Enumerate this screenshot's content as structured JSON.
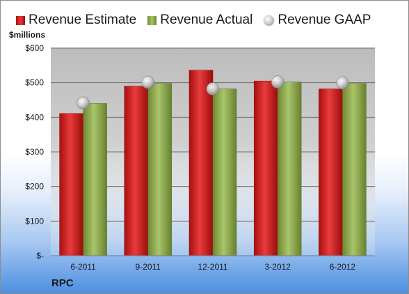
{
  "unit_label": "$millions",
  "company": "RPC",
  "legend": [
    {
      "label": "Revenue Estimate",
      "icon": "red-bar-swatch"
    },
    {
      "label": "Revenue Actual",
      "icon": "green-bar-swatch"
    },
    {
      "label": "Revenue GAAP",
      "icon": "gray-sphere-marker"
    }
  ],
  "colors": {
    "estimate": "#d42a2a",
    "actual": "#8fae4f",
    "gaap": "#b0b0b0",
    "plot_bg": "#c7c7c7"
  },
  "chart_data": {
    "type": "bar",
    "categories": [
      "6-2011",
      "9-2011",
      "12-2011",
      "3-2012",
      "6-2012"
    ],
    "series": [
      {
        "name": "Revenue Estimate",
        "type": "bar",
        "values": [
          411,
          490,
          536,
          505,
          482
        ]
      },
      {
        "name": "Revenue Actual",
        "type": "bar",
        "values": [
          440,
          498,
          482,
          502,
          498
        ]
      },
      {
        "name": "Revenue GAAP",
        "type": "scatter",
        "values": [
          441,
          501,
          482,
          502,
          499
        ]
      }
    ],
    "ylim": [
      0,
      600
    ],
    "yticks": [
      0,
      100,
      200,
      300,
      400,
      500,
      600
    ],
    "ytick_labels": [
      "$-",
      "$100",
      "$200",
      "$300",
      "$400",
      "$500",
      "$600"
    ],
    "grid": true,
    "legend_position": "top"
  }
}
